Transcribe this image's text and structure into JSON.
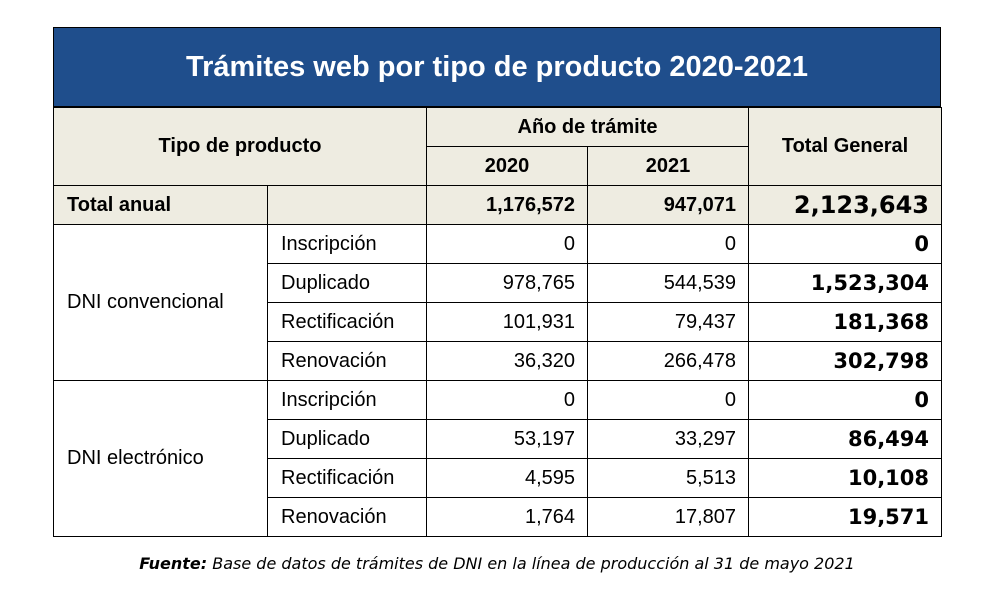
{
  "title": "Trámites web por tipo de producto 2020-2021",
  "headers": {
    "product_type": "Tipo de producto",
    "year_group": "Año de trámite",
    "year_2020": "2020",
    "year_2021": "2021",
    "total_general": "Total General"
  },
  "total_row": {
    "label": "Total anual",
    "v2020": "1,176,572",
    "v2021": "947,071",
    "total": "2,123,643"
  },
  "groups": [
    {
      "name": "DNI convencional",
      "rows": [
        {
          "product": "Inscripción",
          "v2020": "0",
          "v2021": "0",
          "total": "0"
        },
        {
          "product": "Duplicado",
          "v2020": "978,765",
          "v2021": "544,539",
          "total": "1,523,304"
        },
        {
          "product": "Rectificación",
          "v2020": "101,931",
          "v2021": "79,437",
          "total": "181,368"
        },
        {
          "product": "Renovación",
          "v2020": "36,320",
          "v2021": "266,478",
          "total": "302,798"
        }
      ]
    },
    {
      "name": "DNI electrónico",
      "rows": [
        {
          "product": "Inscripción",
          "v2020": "0",
          "v2021": "0",
          "total": "0"
        },
        {
          "product": "Duplicado",
          "v2020": "53,197",
          "v2021": "33,297",
          "total": "86,494"
        },
        {
          "product": "Rectificación",
          "v2020": "4,595",
          "v2021": "5,513",
          "total": "10,108"
        },
        {
          "product": "Renovación",
          "v2020": "1,764",
          "v2021": "17,807",
          "total": "19,571"
        }
      ]
    }
  ],
  "source": {
    "label": "Fuente:",
    "text": "Base de datos de trámites de DNI en la línea de producción al 31 de mayo 2021"
  }
}
